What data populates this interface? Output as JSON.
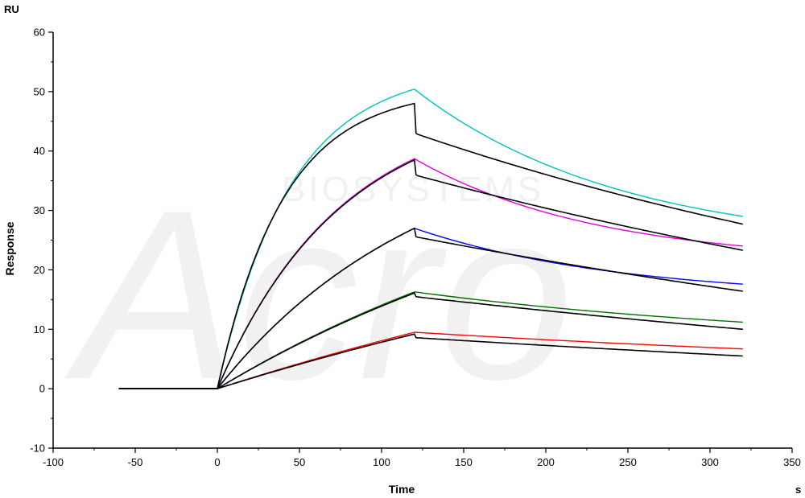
{
  "watermark": {
    "logo_text": "Acro",
    "sub_text": "BIOSYSTEMS",
    "color": "#f0f0f0"
  },
  "chart_data": {
    "type": "line",
    "title": "",
    "xlabel": "Time",
    "ylabel": "Response",
    "x_unit": "s",
    "y_unit": "RU",
    "xlim": [
      -100,
      350
    ],
    "ylim": [
      -10,
      60
    ],
    "x_ticks": [
      -100,
      -50,
      0,
      50,
      100,
      150,
      200,
      250,
      300,
      350
    ],
    "y_ticks": [
      -10,
      0,
      10,
      20,
      30,
      40,
      50,
      60
    ],
    "grid": false,
    "legend": "none",
    "association_start": 0,
    "dissociation_start": 120,
    "end_time": 320,
    "series": [
      {
        "color": "#00c0c0",
        "kind": "measured",
        "baseline_start": -60,
        "peak": 50.4,
        "end": 29.0,
        "assoc_curvature": 2.7,
        "dissoc_curvature": 1.6
      },
      {
        "color": "#000000",
        "kind": "fit",
        "baseline_start": -60,
        "peak": 48.0,
        "drop_to": 43.0,
        "end": 27.7,
        "assoc_curvature": 3.0,
        "dissoc_curvature": 0.45
      },
      {
        "color": "#e000e0",
        "kind": "measured",
        "baseline_start": -60,
        "peak": 38.7,
        "end": 24.0,
        "assoc_curvature": 1.6,
        "dissoc_curvature": 1.8
      },
      {
        "color": "#000000",
        "kind": "fit",
        "baseline_start": -60,
        "peak": 38.5,
        "drop_to": 36.0,
        "end": 23.3,
        "assoc_curvature": 1.6,
        "dissoc_curvature": 0.35
      },
      {
        "color": "#0000ff",
        "kind": "measured",
        "baseline_start": -60,
        "peak": 27.0,
        "end": 17.6,
        "assoc_curvature": 0.95,
        "dissoc_curvature": 1.6
      },
      {
        "color": "#000000",
        "kind": "fit",
        "baseline_start": -60,
        "peak": 27.0,
        "drop_to": 25.6,
        "end": 16.4,
        "assoc_curvature": 0.95,
        "dissoc_curvature": 0.3
      },
      {
        "color": "#007000",
        "kind": "measured",
        "baseline_start": -60,
        "peak": 16.3,
        "end": 11.2,
        "assoc_curvature": 0.45,
        "dissoc_curvature": 0.8
      },
      {
        "color": "#000000",
        "kind": "fit",
        "baseline_start": -60,
        "peak": 16.1,
        "drop_to": 15.5,
        "end": 10.0,
        "assoc_curvature": 0.45,
        "dissoc_curvature": 0.25
      },
      {
        "color": "#ff0000",
        "kind": "measured",
        "baseline_start": -60,
        "peak": 9.5,
        "end": 6.7,
        "assoc_curvature": 0.25,
        "dissoc_curvature": 0.4
      },
      {
        "color": "#000000",
        "kind": "fit",
        "baseline_start": -60,
        "peak": 9.2,
        "drop_to": 8.6,
        "end": 5.5,
        "assoc_curvature": 0.25,
        "dissoc_curvature": 0.2
      }
    ]
  }
}
